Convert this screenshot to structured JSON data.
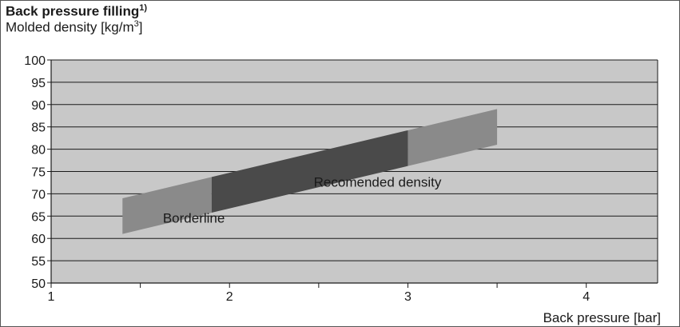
{
  "chart_data": {
    "type": "area",
    "title": "Back pressure filling",
    "title_footnote": "1)",
    "ylabel": "Molded density [kg/m",
    "ylabel_unit_exponent": "3",
    "ylabel_close": "]",
    "xlabel": "Back pressure [bar]",
    "xlim": [
      1,
      4.4
    ],
    "ylim": [
      50,
      100
    ],
    "x_ticks": [
      1,
      2,
      3,
      4
    ],
    "y_ticks": [
      50,
      55,
      60,
      65,
      70,
      75,
      80,
      85,
      90,
      95,
      100
    ],
    "grid": "horizontal",
    "band": {
      "x_start": 1.4,
      "x_end": 3.5,
      "lower": [
        61,
        81
      ],
      "upper": [
        69,
        89
      ]
    },
    "series": [
      {
        "name": "Borderline",
        "x_range": [
          1.4,
          1.9
        ],
        "shade": "#8a8a8a"
      },
      {
        "name": "Recomended density",
        "x_range": [
          1.9,
          3.0
        ],
        "shade": "#4a4a4a"
      },
      {
        "name": "",
        "x_range": [
          3.0,
          3.5
        ],
        "shade": "#8a8a8a"
      }
    ],
    "annotations": [
      {
        "text": "Borderline",
        "x": 1.8,
        "y": 63.5
      },
      {
        "text": "Recomended density",
        "x": 2.83,
        "y": 71.6
      }
    ],
    "colors": {
      "plot_background": "#c8c8c8",
      "gridline": "#1a1a1a",
      "axis": "#1a1a1a"
    }
  }
}
